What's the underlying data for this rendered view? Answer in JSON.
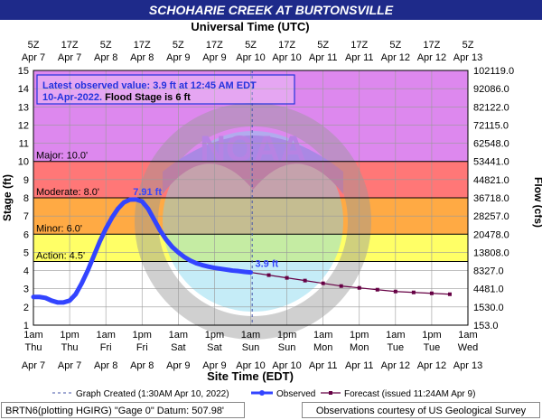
{
  "title": "SCHOHARIE CREEK AT BURTONSVILLE",
  "top_axis_label": "Universal Time (UTC)",
  "bottom_axis_label": "Site Time (EDT)",
  "ylabel_left": "Stage (ft)",
  "ylabel_right": "Flow (cfs)",
  "colors": {
    "title_bg": "#1e2a8a",
    "band_major": "#dd88ee",
    "band_moderate": "#ff7777",
    "band_minor": "#ffaa44",
    "band_action": "#ffff66",
    "observed": "#3344ff",
    "forecast": "#660044",
    "info_box_text": "#2233dd"
  },
  "info_box": {
    "line1": "Latest observed value: 3.9 ft at 12:45 AM EDT",
    "line2_date": "10-Apr-2022.",
    "line2_rest": " Flood Stage is 6 ft"
  },
  "stage_labels": {
    "major": "Major: 10.0'",
    "moderate": "Moderate: 8.0'",
    "minor": "Minor: 6.0'",
    "action": "Action: 4.5'"
  },
  "peak_label": "7.91 ft",
  "latest_label": "3.9 ft",
  "legend": {
    "created": "Graph Created (1:30AM Apr 10, 2022)",
    "observed": "Observed",
    "forecast": "Forecast (issued 11:24AM Apr 9)"
  },
  "footer": {
    "left": "BRTN6(plotting HGIRG) \"Gage 0\" Datum:  507.98'",
    "right": "Observations courtesy of US Geological Survey"
  },
  "watermark_text": "NOAA",
  "chart_data": {
    "type": "line",
    "title": "SCHOHARIE CREEK AT BURTONSVILLE",
    "xlabel": "Site Time (EDT)",
    "ylabel": "Stage (ft)",
    "ylabel_right": "Flow (cfs)",
    "x_unit": "hours since Apr 7 1am EDT",
    "xlim": [
      0,
      144
    ],
    "ylim": [
      1,
      15
    ],
    "grid": true,
    "y_ticks": [
      1,
      2,
      3,
      4,
      5,
      6,
      7,
      8,
      9,
      10,
      11,
      12,
      13,
      14,
      15
    ],
    "right_ticks": [
      {
        "stage": 1,
        "label": "153.0"
      },
      {
        "stage": 2,
        "label": "1530.0"
      },
      {
        "stage": 3,
        "label": "4481.0"
      },
      {
        "stage": 4,
        "label": "8327.0"
      },
      {
        "stage": 5,
        "label": "13808.0"
      },
      {
        "stage": 6,
        "label": "20478.0"
      },
      {
        "stage": 7,
        "label": "28257.0"
      },
      {
        "stage": 8,
        "label": "36718.0"
      },
      {
        "stage": 9,
        "label": "44821.0"
      },
      {
        "stage": 10,
        "label": "53441.0"
      },
      {
        "stage": 11,
        "label": "62548.0"
      },
      {
        "stage": 12,
        "label": "72115.0"
      },
      {
        "stage": 13,
        "label": "82122.0"
      },
      {
        "stage": 14,
        "label": "92086.0"
      },
      {
        "stage": 15,
        "label": "102119.0"
      }
    ],
    "x_ticks_bottom": [
      {
        "x": 0,
        "time": "1am",
        "day": "Thu"
      },
      {
        "x": 12,
        "time": "1pm",
        "day": "Thu"
      },
      {
        "x": 24,
        "time": "1am",
        "day": "Fri"
      },
      {
        "x": 36,
        "time": "1pm",
        "day": "Fri"
      },
      {
        "x": 48,
        "time": "1am",
        "day": "Sat"
      },
      {
        "x": 60,
        "time": "1pm",
        "day": "Sat"
      },
      {
        "x": 72,
        "time": "1am",
        "day": "Sun"
      },
      {
        "x": 84,
        "time": "1pm",
        "day": "Sun"
      },
      {
        "x": 96,
        "time": "1am",
        "day": "Mon"
      },
      {
        "x": 108,
        "time": "1pm",
        "day": "Mon"
      },
      {
        "x": 120,
        "time": "1am",
        "day": "Tue"
      },
      {
        "x": 132,
        "time": "1pm",
        "day": "Tue"
      },
      {
        "x": 144,
        "time": "1am",
        "day": "Wed"
      }
    ],
    "x_dates_bottom": [
      "Apr 7",
      "Apr 7",
      "Apr 8",
      "Apr 8",
      "Apr 9",
      "Apr 9",
      "Apr 10",
      "Apr 10",
      "Apr 11",
      "Apr 11",
      "Apr 12",
      "Apr 12",
      "Apr 13"
    ],
    "x_ticks_top": [
      {
        "x": 0,
        "time": "5Z",
        "date": "Apr 7"
      },
      {
        "x": 12,
        "time": "17Z",
        "date": "Apr 7"
      },
      {
        "x": 24,
        "time": "5Z",
        "date": "Apr 8"
      },
      {
        "x": 36,
        "time": "17Z",
        "date": "Apr 8"
      },
      {
        "x": 48,
        "time": "5Z",
        "date": "Apr 9"
      },
      {
        "x": 60,
        "time": "17Z",
        "date": "Apr 9"
      },
      {
        "x": 72,
        "time": "5Z",
        "date": "Apr 10"
      },
      {
        "x": 84,
        "time": "17Z",
        "date": "Apr 10"
      },
      {
        "x": 96,
        "time": "5Z",
        "date": "Apr 11"
      },
      {
        "x": 108,
        "time": "17Z",
        "date": "Apr 11"
      },
      {
        "x": 120,
        "time": "5Z",
        "date": "Apr 12"
      },
      {
        "x": 132,
        "time": "17Z",
        "date": "Apr 12"
      },
      {
        "x": 144,
        "time": "5Z",
        "date": "Apr 13"
      }
    ],
    "flood_categories": [
      {
        "name": "Major",
        "stage": 10.0
      },
      {
        "name": "Moderate",
        "stage": 8.0
      },
      {
        "name": "Minor",
        "stage": 6.0
      },
      {
        "name": "Action",
        "stage": 4.5
      }
    ],
    "graph_created_x": 72.5,
    "series": [
      {
        "name": "Observed",
        "x": [
          0,
          2,
          4,
          6,
          8,
          10,
          12,
          14,
          16,
          18,
          20,
          22,
          24,
          26,
          28,
          30,
          32,
          34,
          36,
          38,
          40,
          42,
          44,
          46,
          48,
          50,
          52,
          54,
          56,
          58,
          60,
          62,
          64,
          66,
          68,
          70,
          72
        ],
        "y": [
          2.55,
          2.55,
          2.5,
          2.35,
          2.25,
          2.25,
          2.35,
          2.7,
          3.3,
          4.0,
          4.8,
          5.6,
          6.3,
          6.9,
          7.4,
          7.75,
          7.9,
          7.91,
          7.8,
          7.4,
          6.8,
          6.2,
          5.7,
          5.3,
          5.0,
          4.75,
          4.55,
          4.4,
          4.3,
          4.22,
          4.15,
          4.1,
          4.05,
          4.0,
          3.97,
          3.93,
          3.9
        ]
      },
      {
        "name": "Forecast (issued 11:24AM Apr 9)",
        "x": [
          72,
          78,
          84,
          90,
          96,
          102,
          108,
          114,
          120,
          126,
          132,
          138
        ],
        "y": [
          3.9,
          3.75,
          3.6,
          3.45,
          3.3,
          3.15,
          3.05,
          2.95,
          2.85,
          2.8,
          2.75,
          2.7
        ]
      }
    ]
  }
}
